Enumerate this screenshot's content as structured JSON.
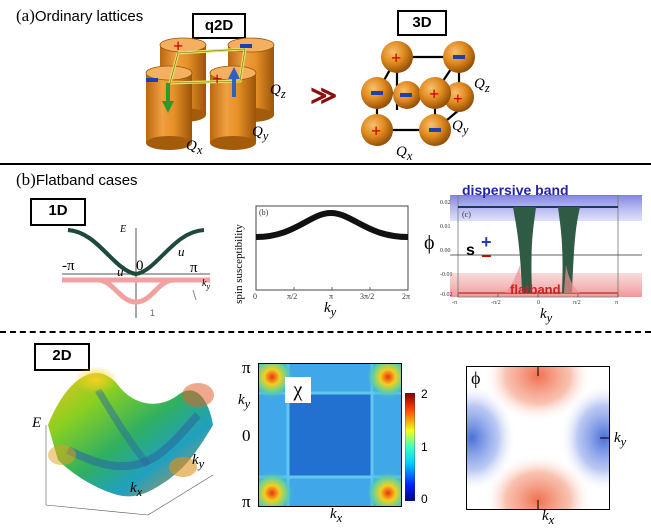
{
  "sections": {
    "a": {
      "paren": "(a)",
      "title": "Ordinary lattices"
    },
    "b": {
      "paren": "(b)",
      "title": "Flatband cases"
    }
  },
  "labels": {
    "q2d": "q2D",
    "three_d": "3D",
    "one_d": "1D",
    "two_d": "2D",
    "qz": "Q",
    "qz_sub": "z",
    "qy": "Q",
    "qy_sub": "y",
    "qx": "Q",
    "qx_sub": "x",
    "arrow": "≫"
  },
  "band_1d": {
    "e_label": "E",
    "neg_pi": "-π",
    "zero": "0",
    "pi": "π",
    "u_left": "u",
    "u_right": "u",
    "ky": "k",
    "ky_sub": "y",
    "bottom_tick": "1"
  },
  "spin_plot": {
    "ylabel": "spin susceptibility",
    "panel": "(b)",
    "xlabel": "k",
    "xlabel_sub": "y",
    "xticks": [
      "0",
      "π/2",
      "π",
      "3π/2",
      "2π"
    ],
    "yticks": [
      "",
      "",
      "",
      "",
      ""
    ]
  },
  "phi_plot": {
    "panel": "(c)",
    "phi": "ϕ",
    "s": "s",
    "pm_plus": "+",
    "pm_minus": "−",
    "dispersive": "dispersive band",
    "flatband": "flatband",
    "xlabel": "k",
    "xlabel_sub": "y",
    "yticks": [
      "0.02",
      "0.01",
      "0.00",
      "-0.01",
      "-0.02"
    ],
    "xticks": [
      "-π",
      "-π/2",
      "0",
      "π/2",
      "π"
    ]
  },
  "surface_2d": {
    "e_label": "E",
    "ky": "k",
    "ky_sub": "y",
    "kx": "k",
    "kx_sub": "x"
  },
  "chi_map": {
    "chi": "χ",
    "pi_top": "π",
    "zero": "0",
    "pi_bottom": "π",
    "ky": "k",
    "ky_sub": "y",
    "kx": "k",
    "kx_sub": "x",
    "colorbar": {
      "ticks": [
        "2",
        "1",
        "0"
      ],
      "range": [
        0,
        2
      ]
    }
  },
  "phi_map": {
    "phi": "ϕ",
    "ky": "k",
    "ky_sub": "y",
    "kx": "k",
    "kx_sub": "x"
  },
  "colors": {
    "orange": "#e08a1e",
    "plus": "#cc0000",
    "minus": "#1f3fb0",
    "dark_green": "#1f4a3a",
    "pink": "#f2a0a0",
    "dispersive": "#2222aa",
    "flat": "#cc2222"
  }
}
